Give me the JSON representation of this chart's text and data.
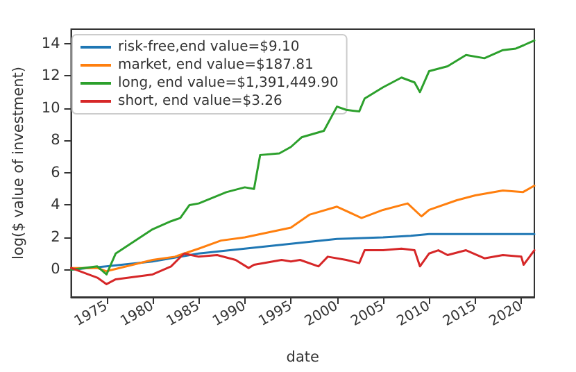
{
  "chart_data": {
    "type": "line",
    "xlabel": "date",
    "ylabel": "log($ value of investment)",
    "xlim": [
      "1971-03",
      "2021-06"
    ],
    "ylim": [
      -1.7,
      14.9
    ],
    "xticks": [
      "1975",
      "1980",
      "1985",
      "1990",
      "1995",
      "2000",
      "2005",
      "2010",
      "2015",
      "2020"
    ],
    "yticks": [
      0,
      2,
      4,
      6,
      8,
      10,
      12,
      14
    ],
    "grid": false,
    "legend": "top left",
    "marker": "none",
    "line_style": "solid",
    "series": [
      {
        "name": "risk-free,end value=$9.10",
        "color": "#1f77b4",
        "x": [
          "1971-03",
          "1975-01",
          "1980-01",
          "1985-01",
          "1990-01",
          "1995-01",
          "2000-01",
          "2005-01",
          "2008-01",
          "2010-01",
          "2015-01",
          "2021-06"
        ],
        "values": [
          0,
          0.2,
          0.5,
          1.0,
          1.3,
          1.6,
          1.9,
          2.0,
          2.1,
          2.2,
          2.2,
          2.2
        ]
      },
      {
        "name": "market, end value=$187.81",
        "color": "#ff7f0e",
        "x": [
          "1971-03",
          "1974-01",
          "1975-01",
          "1980-01",
          "1982-06",
          "1985-01",
          "1987-06",
          "1990-01",
          "1995-01",
          "1997-01",
          "2000-01",
          "2002-09",
          "2005-01",
          "2007-09",
          "2009-03",
          "2010-01",
          "2013-01",
          "2015-01",
          "2018-01",
          "2020-03",
          "2021-06"
        ],
        "values": [
          0.1,
          0.1,
          -0.1,
          0.6,
          0.8,
          1.3,
          1.8,
          2.0,
          2.6,
          3.4,
          3.9,
          3.2,
          3.7,
          4.1,
          3.3,
          3.7,
          4.3,
          4.6,
          4.9,
          4.8,
          5.2
        ]
      },
      {
        "name": "long, end value=$1,391,449.90",
        "color": "#2ca02c",
        "x": [
          "1971-03",
          "1974-01",
          "1975-01",
          "1976-01",
          "1980-01",
          "1982-01",
          "1983-01",
          "1984-01",
          "1985-01",
          "1988-01",
          "1990-01",
          "1991-01",
          "1991-09",
          "1993-10",
          "1995-01",
          "1996-03",
          "1998-08",
          "2000-01",
          "2001-01",
          "2002-06",
          "2003-01",
          "2005-01",
          "2007-01",
          "2008-06",
          "2009-01",
          "2010-01",
          "2012-01",
          "2014-01",
          "2016-01",
          "2018-01",
          "2019-06",
          "2020-04",
          "2021-06"
        ],
        "values": [
          0,
          0.2,
          -0.3,
          1.0,
          2.5,
          3.0,
          3.2,
          4.0,
          4.1,
          4.8,
          5.1,
          5.0,
          7.1,
          7.2,
          7.6,
          8.2,
          8.6,
          10.1,
          9.9,
          9.8,
          10.6,
          11.3,
          11.9,
          11.6,
          11.0,
          12.3,
          12.6,
          13.3,
          13.1,
          13.6,
          13.7,
          13.9,
          14.2
        ]
      },
      {
        "name": "short, end value=$3.26",
        "color": "#d62728",
        "x": [
          "1971-03",
          "1974-01",
          "1975-01",
          "1976-01",
          "1980-01",
          "1982-01",
          "1983-06",
          "1985-01",
          "1987-01",
          "1989-01",
          "1990-06",
          "1991-01",
          "1994-01",
          "1995-01",
          "1996-01",
          "1998-01",
          "1999-01",
          "2001-01",
          "2002-06",
          "2003-01",
          "2005-01",
          "2007-01",
          "2008-06",
          "2009-01",
          "2010-01",
          "2011-01",
          "2012-01",
          "2014-01",
          "2016-01",
          "2018-01",
          "2020-01",
          "2020-04",
          "2021-06"
        ],
        "values": [
          0.1,
          -0.5,
          -0.9,
          -0.6,
          -0.3,
          0.2,
          1.0,
          0.8,
          0.9,
          0.6,
          0.1,
          0.3,
          0.6,
          0.5,
          0.6,
          0.2,
          0.8,
          0.6,
          0.4,
          1.2,
          1.2,
          1.3,
          1.2,
          0.2,
          1.0,
          1.2,
          0.9,
          1.2,
          0.7,
          0.9,
          0.8,
          0.3,
          1.2
        ]
      }
    ]
  }
}
